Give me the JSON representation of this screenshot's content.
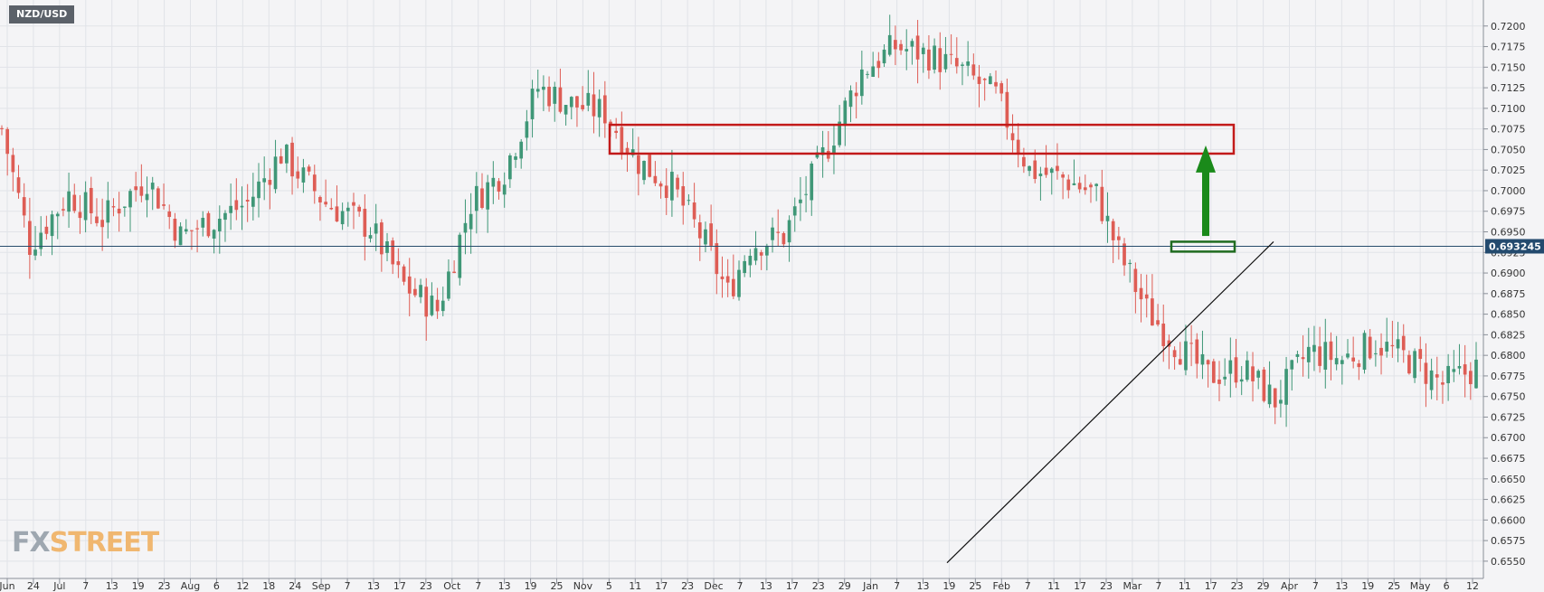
{
  "chart_data": {
    "type": "candlestick",
    "symbol": "NZD/USD",
    "current_price": 0.693245,
    "current_price_label": "0.693245",
    "ylim": [
      0.654,
      0.7225
    ],
    "y_ticks": [
      "0.7200",
      "0.7175",
      "0.7150",
      "0.7125",
      "0.7100",
      "0.7075",
      "0.7050",
      "0.7025",
      "0.7000",
      "0.6975",
      "0.6950",
      "0.6925",
      "0.6900",
      "0.6875",
      "0.6850",
      "0.6825",
      "0.6800",
      "0.6775",
      "0.6750",
      "0.6725",
      "0.6700",
      "0.6675",
      "0.6650",
      "0.6625",
      "0.6600",
      "0.6575",
      "0.6550"
    ],
    "x_ticks": [
      "Jun",
      "24",
      "Jul",
      "7",
      "13",
      "19",
      "23",
      "Aug",
      "6",
      "12",
      "18",
      "24",
      "Sep",
      "7",
      "13",
      "17",
      "23",
      "Oct",
      "7",
      "13",
      "19",
      "25",
      "Nov",
      "5",
      "11",
      "17",
      "23",
      "Dec",
      "7",
      "13",
      "17",
      "23",
      "29",
      "Jan",
      "7",
      "13",
      "19",
      "25",
      "Feb",
      "7",
      "11",
      "17",
      "23",
      "Mar",
      "7",
      "11",
      "17",
      "23",
      "29",
      "Apr",
      "7",
      "13",
      "19",
      "25",
      "May",
      "6",
      "12"
    ],
    "candles_count": 265,
    "price_path": [
      {
        "i": 0,
        "close": 0.7075
      },
      {
        "i": 5,
        "close": 0.6935
      },
      {
        "i": 12,
        "close": 0.6995
      },
      {
        "i": 18,
        "close": 0.6965
      },
      {
        "i": 26,
        "close": 0.7015
      },
      {
        "i": 32,
        "close": 0.6945
      },
      {
        "i": 38,
        "close": 0.6965
      },
      {
        "i": 44,
        "close": 0.6985
      },
      {
        "i": 50,
        "close": 0.7045
      },
      {
        "i": 58,
        "close": 0.6985
      },
      {
        "i": 66,
        "close": 0.6955
      },
      {
        "i": 72,
        "close": 0.6885
      },
      {
        "i": 78,
        "close": 0.6855
      },
      {
        "i": 84,
        "close": 0.6985
      },
      {
        "i": 90,
        "close": 0.7025
      },
      {
        "i": 96,
        "close": 0.7125
      },
      {
        "i": 102,
        "close": 0.7105
      },
      {
        "i": 108,
        "close": 0.7095
      },
      {
        "i": 114,
        "close": 0.7035
      },
      {
        "i": 120,
        "close": 0.7005
      },
      {
        "i": 126,
        "close": 0.6935
      },
      {
        "i": 130,
        "close": 0.6875
      },
      {
        "i": 134,
        "close": 0.6935
      },
      {
        "i": 140,
        "close": 0.6945
      },
      {
        "i": 148,
        "close": 0.7055
      },
      {
        "i": 154,
        "close": 0.7145
      },
      {
        "i": 160,
        "close": 0.7175
      },
      {
        "i": 166,
        "close": 0.7165
      },
      {
        "i": 172,
        "close": 0.7145
      },
      {
        "i": 178,
        "close": 0.7115
      },
      {
        "i": 184,
        "close": 0.7025
      },
      {
        "i": 190,
        "close": 0.7015
      },
      {
        "i": 196,
        "close": 0.6995
      },
      {
        "i": 200,
        "close": 0.6925
      },
      {
        "i": 205,
        "close": 0.6855
      },
      {
        "i": 210,
        "close": 0.6815
      },
      {
        "i": 216,
        "close": 0.6775
      },
      {
        "i": 222,
        "close": 0.6785
      },
      {
        "i": 228,
        "close": 0.6745
      },
      {
        "i": 234,
        "close": 0.6805
      },
      {
        "i": 240,
        "close": 0.6795
      },
      {
        "i": 246,
        "close": 0.6815
      },
      {
        "i": 252,
        "close": 0.6795
      },
      {
        "i": 258,
        "close": 0.6765
      },
      {
        "i": 264,
        "close": 0.6785
      }
    ],
    "annotations": {
      "resistance_zone": [
        0.7045,
        0.708
      ],
      "support_zone": [
        0.6926,
        0.6938
      ],
      "target_arrow": [
        0.6945,
        0.7055
      ],
      "trendline": [
        [
          0.6548,
          0.6938
        ],
        [
          "Feb",
          "Apr"
        ]
      ]
    }
  },
  "watermark": {
    "part1": "FX",
    "part2": "STREET"
  },
  "colors": {
    "up": "#3f9777",
    "down": "#de5d55",
    "grid": "#e1e3e8",
    "price_line": "#274c6c",
    "resistance": "#c21a1a",
    "support": "#1f6b1f",
    "arrow": "#1a8a1a",
    "trendline": "#111111",
    "price_badge": "#234a6e"
  }
}
